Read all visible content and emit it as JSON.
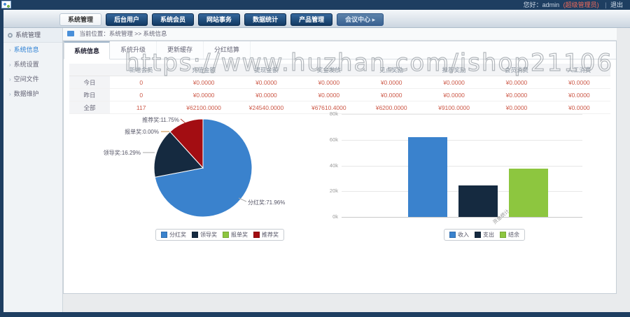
{
  "topbar": {
    "greeting": "您好：admin",
    "role": "(超级管理员)",
    "divider": "|",
    "logout": "退出"
  },
  "nav": {
    "tabs": [
      {
        "label": "系统管理",
        "state": "active"
      },
      {
        "label": "后台用户",
        "state": ""
      },
      {
        "label": "系统会员",
        "state": ""
      },
      {
        "label": "网站事务",
        "state": ""
      },
      {
        "label": "数据统计",
        "state": ""
      },
      {
        "label": "产品管理",
        "state": ""
      },
      {
        "label": "会议中心 ▸",
        "state": "muted"
      }
    ]
  },
  "breadcrumb": {
    "text": "当前位置：系统管理 >> 系统信息"
  },
  "sidebar": {
    "header": "系统管理",
    "items": [
      {
        "label": "系统信息",
        "active": true
      },
      {
        "label": "系统设置",
        "active": false
      },
      {
        "label": "空间文件",
        "active": false
      },
      {
        "label": "数据维护",
        "active": false
      }
    ]
  },
  "content": {
    "tabs": [
      {
        "label": "系统信息",
        "active": true
      },
      {
        "label": "系统升级",
        "active": false
      },
      {
        "label": "更新缓存",
        "active": false
      },
      {
        "label": "分红结算",
        "active": false
      }
    ],
    "watermark": "https://www.huzhan.com/ishop21106"
  },
  "table": {
    "headers": [
      "",
      "新增会员",
      "充值金额",
      "提现金额",
      "奖金发放",
      "见点奖励",
      "推荐奖励",
      "会员消费",
      "人工消费"
    ],
    "rows": [
      {
        "label": "今日",
        "values": [
          "0",
          "¥0.0000",
          "¥0.0000",
          "¥0.0000",
          "¥0.0000",
          "¥0.0000",
          "¥0.0000",
          "¥0.0000"
        ]
      },
      {
        "label": "昨日",
        "values": [
          "0",
          "¥0.0000",
          "¥0.0000",
          "¥0.0000",
          "¥0.0000",
          "¥0.0000",
          "¥0.0000",
          "¥0.0000"
        ]
      },
      {
        "label": "全部",
        "values": [
          "117",
          "¥62100.0000",
          "¥24540.0000",
          "¥67610.4000",
          "¥6200.0000",
          "¥9100.0000",
          "¥0.0000",
          "¥0.0000"
        ]
      }
    ],
    "value_color": "#cc5847"
  },
  "chart_data": [
    {
      "type": "pie",
      "slices": [
        {
          "label": "分红奖",
          "pct": 71.96,
          "color": "#3a82cd"
        },
        {
          "label": "领导奖",
          "pct": 16.29,
          "color": "#152a40"
        },
        {
          "label": "报单奖",
          "pct": 0.0,
          "color": "#8dc63f"
        },
        {
          "label": "推荐奖",
          "pct": 11.75,
          "color": "#a30d12"
        }
      ],
      "legend_position": "bottom"
    },
    {
      "type": "bar",
      "categories": [
        "收入",
        "支出",
        "结余"
      ],
      "values": [
        62100,
        24540,
        37560
      ],
      "colors": [
        "#3a82cd",
        "#152a40",
        "#8dc63f"
      ],
      "ylim": [
        0,
        80000
      ],
      "yticks": [
        {
          "v": 0,
          "label": "0k"
        },
        {
          "v": 20000,
          "label": "20k"
        },
        {
          "v": 40000,
          "label": "40k"
        },
        {
          "v": 60000,
          "label": "60k"
        },
        {
          "v": 80000,
          "label": "80k"
        }
      ],
      "xlabel": "资金统计",
      "legend_position": "bottom"
    }
  ]
}
